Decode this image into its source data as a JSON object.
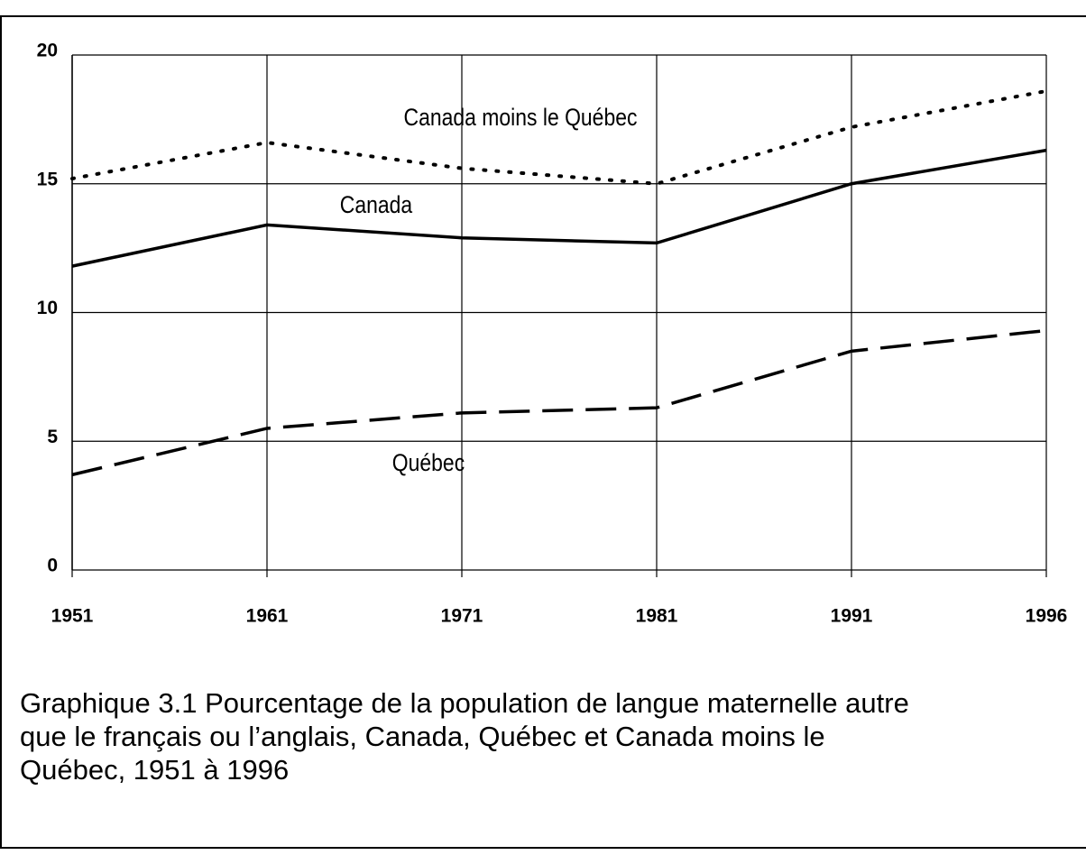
{
  "chart_data": {
    "type": "line",
    "categories": [
      "1951",
      "1961",
      "1971",
      "1981",
      "1991",
      "1996"
    ],
    "series": [
      {
        "name": "Canada moins le Québec",
        "color": "#000000",
        "style": "dotted",
        "values": [
          15.2,
          16.6,
          15.6,
          15.0,
          17.2,
          18.6
        ]
      },
      {
        "name": "Canada",
        "color": "#000000",
        "style": "solid",
        "values": [
          11.8,
          13.4,
          12.9,
          12.7,
          15.0,
          16.3
        ]
      },
      {
        "name": "Québec",
        "color": "#000000",
        "style": "dashed",
        "values": [
          3.7,
          5.5,
          6.1,
          6.3,
          8.5,
          9.3
        ]
      }
    ],
    "ylim": [
      0,
      20
    ],
    "yticks": [
      0,
      5,
      10,
      15,
      20
    ],
    "grid": true,
    "caption": [
      "Graphique 3.1 Pourcentage de la population de langue maternelle autre",
      "que le français ou l’anglais, Canada, Québec et Canada moins le",
      "Québec, 1951 à 1996"
    ]
  }
}
